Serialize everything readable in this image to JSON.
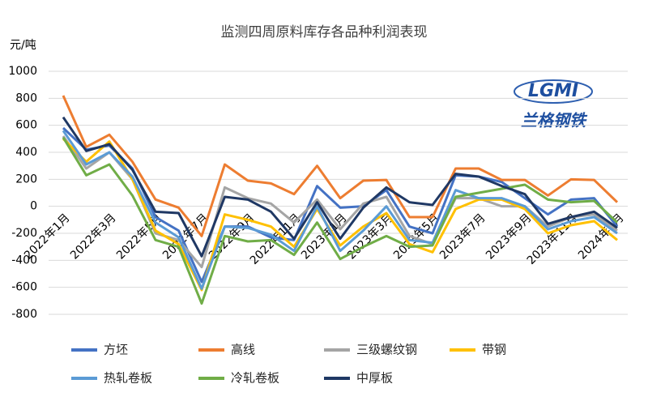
{
  "chart_data": {
    "type": "line",
    "title": "监测四周原料库存各品种利润表现",
    "y_label": "元/吨",
    "annotations": [
      "LGMI",
      "兰格钢铁"
    ],
    "categories": [
      "2022年1月",
      null,
      "2022年3月",
      null,
      "2022年5月",
      null,
      "2022年7月",
      null,
      "2022年9月",
      null,
      "2022年11月",
      null,
      "2023年1月",
      null,
      "2023年3月",
      null,
      "2023年5月",
      null,
      "2023年7月",
      null,
      "2023年9月",
      null,
      "2023年11月",
      null,
      "2024年1月"
    ],
    "ylim": [
      -800,
      1000
    ],
    "yticks": [
      -800,
      -600,
      -400,
      -200,
      0,
      200,
      400,
      600,
      800,
      1000
    ],
    "grid": true,
    "legend": "bottom",
    "series": [
      {
        "name": "方坯",
        "color": "#4472c4",
        "values": [
          580,
          420,
          450,
          280,
          -80,
          -180,
          -560,
          -150,
          -150,
          -230,
          -250,
          150,
          -10,
          0,
          120,
          -150,
          -200,
          230,
          220,
          180,
          60,
          -60,
          50,
          60,
          -150
        ]
      },
      {
        "name": "高线",
        "color": "#ed7d31",
        "values": [
          820,
          440,
          530,
          330,
          50,
          -10,
          -220,
          310,
          190,
          170,
          90,
          300,
          60,
          190,
          195,
          -80,
          -80,
          280,
          280,
          195,
          195,
          80,
          200,
          195,
          30
        ]
      },
      {
        "name": "三级螺纹钢",
        "color": "#a5a5a5",
        "values": [
          520,
          280,
          400,
          200,
          -200,
          -250,
          -450,
          140,
          60,
          20,
          -120,
          50,
          -170,
          20,
          70,
          -220,
          -280,
          60,
          60,
          0,
          0,
          -150,
          -80,
          -60,
          -180
        ]
      },
      {
        "name": "带钢",
        "color": "#ffc000",
        "values": [
          500,
          330,
          480,
          200,
          -180,
          -280,
          -620,
          -60,
          -100,
          -150,
          -300,
          -20,
          -290,
          -150,
          -50,
          -280,
          -340,
          -20,
          50,
          50,
          -20,
          -200,
          -140,
          -110,
          -250
        ]
      },
      {
        "name": "热轧卷板",
        "color": "#5b9bd5",
        "values": [
          560,
          310,
          400,
          220,
          -120,
          -230,
          -610,
          -150,
          -160,
          -210,
          -330,
          0,
          -330,
          -180,
          0,
          -250,
          -270,
          120,
          60,
          60,
          0,
          -170,
          -110,
          -80,
          -200
        ]
      },
      {
        "name": "冷轧卷板",
        "color": "#70ad47",
        "values": [
          510,
          230,
          310,
          80,
          -250,
          -300,
          -720,
          -220,
          -260,
          -250,
          -360,
          -120,
          -390,
          -300,
          -220,
          -300,
          -290,
          70,
          100,
          130,
          160,
          50,
          30,
          40,
          -120
        ]
      },
      {
        "name": "中厚板",
        "color": "#1f3864",
        "values": [
          660,
          410,
          460,
          270,
          -40,
          -50,
          -370,
          70,
          50,
          -40,
          -240,
          30,
          -240,
          -10,
          140,
          30,
          10,
          240,
          220,
          150,
          90,
          -130,
          -80,
          -40,
          -160
        ]
      }
    ]
  }
}
